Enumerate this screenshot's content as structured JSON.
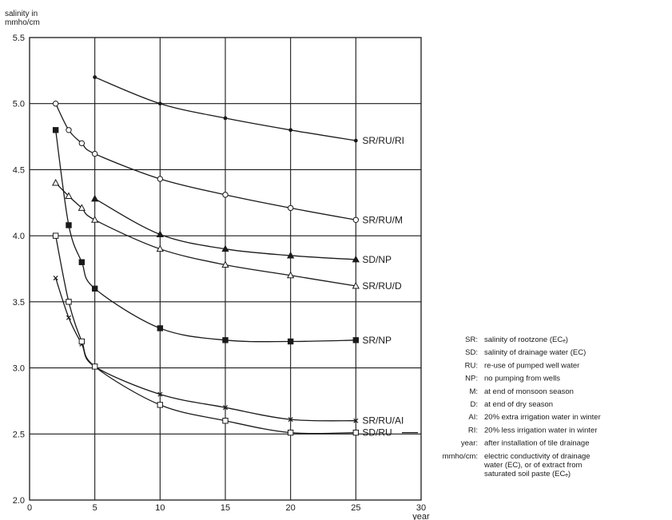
{
  "chart_data": {
    "type": "line",
    "title": "",
    "ylabel": [
      "salinity in",
      "mmho/cm"
    ],
    "xlabel": "year",
    "xlim": [
      0,
      30
    ],
    "ylim": [
      2.0,
      5.5
    ],
    "xticks": [
      "0",
      "5",
      "10",
      "15",
      "20",
      "25",
      "30"
    ],
    "yticks": [
      "2.0",
      "2.5",
      "3.0",
      "3.5",
      "4.0",
      "4.5",
      "5.0",
      "5.5"
    ],
    "grid": true,
    "series": [
      {
        "name": "SR/RU/RI",
        "marker": "dot",
        "x": [
          5,
          10,
          15,
          20,
          25
        ],
        "y": [
          5.2,
          5.0,
          4.89,
          4.8,
          4.72
        ]
      },
      {
        "name": "SR/RU/M",
        "marker": "circle",
        "x": [
          2,
          3,
          4,
          5,
          10,
          15,
          20,
          25
        ],
        "y": [
          5.0,
          4.8,
          4.7,
          4.62,
          4.43,
          4.31,
          4.21,
          4.12
        ]
      },
      {
        "name": "SD/NP",
        "marker": "triangle-filled",
        "x": [
          5,
          10,
          15,
          20,
          25
        ],
        "y": [
          4.28,
          4.01,
          3.9,
          3.85,
          3.82
        ]
      },
      {
        "name": "SR/RU/D",
        "marker": "triangle",
        "x": [
          2,
          3,
          4,
          5,
          10,
          15,
          20,
          25
        ],
        "y": [
          4.4,
          4.3,
          4.21,
          4.12,
          3.9,
          3.78,
          3.7,
          3.62
        ]
      },
      {
        "name": "SR/NP",
        "marker": "square-filled",
        "x": [
          2,
          3,
          4,
          5,
          10,
          15,
          20,
          25
        ],
        "y": [
          4.8,
          4.08,
          3.8,
          3.6,
          3.3,
          3.21,
          3.2,
          3.21
        ]
      },
      {
        "name": "SR/RU/AI",
        "marker": "cross",
        "x": [
          2,
          3,
          4,
          5,
          10,
          15,
          20,
          25
        ],
        "y": [
          3.68,
          3.38,
          3.18,
          3.01,
          2.8,
          2.7,
          2.61,
          2.6
        ]
      },
      {
        "name": "SD/RU",
        "marker": "square",
        "x": [
          2,
          3,
          4,
          5,
          10,
          15,
          20,
          25
        ],
        "y": [
          4.0,
          3.5,
          3.2,
          3.01,
          2.72,
          2.6,
          2.51,
          2.51
        ]
      }
    ],
    "legend": [
      {
        "key": "SR:",
        "text": [
          "salinity of rootzone (ECₑ)"
        ]
      },
      {
        "key": "SD:",
        "text": [
          "salinity of drainage water (EC)"
        ]
      },
      {
        "key": "RU:",
        "text": [
          "re-use of pumped well water"
        ]
      },
      {
        "key": "NP:",
        "text": [
          "no pumping from wells"
        ]
      },
      {
        "key": "M:",
        "text": [
          "at end of monsoon season"
        ]
      },
      {
        "key": "D:",
        "text": [
          "at end of dry season"
        ]
      },
      {
        "key": "AI:",
        "text": [
          "20% extra irrigation water in winter"
        ]
      },
      {
        "key": "RI:",
        "text": [
          "20% less irrigation water in winter"
        ]
      },
      {
        "key": "year:",
        "text": [
          "after installation of tile drainage"
        ]
      },
      {
        "key": "mmho/cm:",
        "text": [
          "electric conductivity of drainage",
          "water (EC), or of extract from",
          "saturated soil paste (ECₑ)"
        ]
      }
    ],
    "colors": {
      "ink": "#1a1a1a",
      "grid": "#1a1a1a",
      "background": "#ffffff"
    }
  }
}
